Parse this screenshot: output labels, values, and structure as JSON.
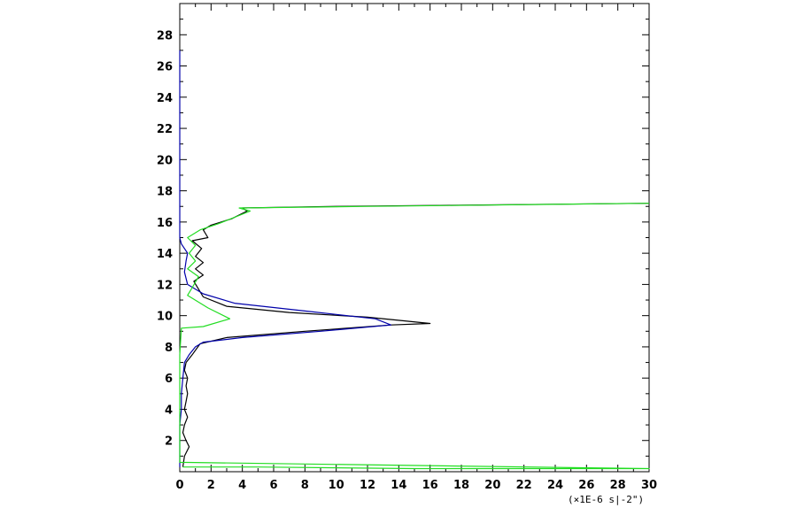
{
  "chart_data": {
    "type": "line",
    "title": "",
    "xlabel": "",
    "ylabel": "",
    "x_unit_note": "(×1E-6 s|-2\")",
    "xlim": [
      0,
      30
    ],
    "ylim": [
      0,
      30
    ],
    "x_ticks": [
      0,
      2,
      4,
      6,
      8,
      10,
      12,
      14,
      16,
      18,
      20,
      22,
      24,
      26,
      28,
      30
    ],
    "y_ticks": [
      2,
      4,
      6,
      8,
      10,
      12,
      14,
      16,
      18,
      20,
      22,
      24,
      26,
      28
    ],
    "grid": false,
    "series": [
      {
        "color": "#000000",
        "points": [
          [
            0.2,
            0.3
          ],
          [
            0.3,
            1.0
          ],
          [
            0.6,
            1.6
          ],
          [
            0.4,
            2.0
          ],
          [
            0.2,
            2.5
          ],
          [
            0.3,
            3.0
          ],
          [
            0.5,
            3.5
          ],
          [
            0.3,
            4.0
          ],
          [
            0.4,
            4.5
          ],
          [
            0.5,
            5.0
          ],
          [
            0.4,
            5.5
          ],
          [
            0.5,
            6.0
          ],
          [
            0.3,
            6.5
          ],
          [
            0.4,
            7.0
          ],
          [
            0.8,
            7.5
          ],
          [
            1.3,
            8.2
          ],
          [
            3.0,
            8.6
          ],
          [
            8.0,
            9.0
          ],
          [
            13.5,
            9.4
          ],
          [
            16.0,
            9.5
          ],
          [
            12.0,
            9.9
          ],
          [
            7.0,
            10.2
          ],
          [
            3.0,
            10.6
          ],
          [
            1.5,
            11.2
          ],
          [
            1.2,
            11.7
          ],
          [
            0.9,
            12.2
          ],
          [
            1.5,
            12.6
          ],
          [
            1.0,
            13.0
          ],
          [
            1.5,
            13.4
          ],
          [
            1.0,
            13.8
          ],
          [
            1.4,
            14.3
          ],
          [
            0.8,
            14.8
          ],
          [
            1.8,
            15.0
          ],
          [
            1.5,
            15.5
          ],
          [
            2.0,
            15.8
          ],
          [
            3.3,
            16.2
          ],
          [
            4.3,
            16.7
          ],
          [
            4.0,
            16.9
          ],
          [
            10.0,
            17.0
          ],
          [
            20.0,
            17.1
          ],
          [
            30.0,
            17.2
          ]
        ]
      },
      {
        "color": "#0000aa",
        "points": [
          [
            0.0,
            27.0
          ],
          [
            0.0,
            24.0
          ],
          [
            0.0,
            21.0
          ],
          [
            0.0,
            18.0
          ],
          [
            0.0,
            17.5
          ],
          [
            0.0,
            16.0
          ],
          [
            0.0,
            15.0
          ],
          [
            0.1,
            14.6
          ],
          [
            0.5,
            14.0
          ],
          [
            0.4,
            13.5
          ],
          [
            0.3,
            12.8
          ],
          [
            0.5,
            12.0
          ],
          [
            1.5,
            11.4
          ],
          [
            3.5,
            10.8
          ],
          [
            8.0,
            10.3
          ],
          [
            12.5,
            9.8
          ],
          [
            13.5,
            9.4
          ],
          [
            9.0,
            9.0
          ],
          [
            4.0,
            8.6
          ],
          [
            1.5,
            8.3
          ],
          [
            1.0,
            8.0
          ],
          [
            0.6,
            7.5
          ],
          [
            0.3,
            7.0
          ],
          [
            0.2,
            6.0
          ],
          [
            0.1,
            5.0
          ],
          [
            0.1,
            4.0
          ],
          [
            0.0,
            3.0
          ],
          [
            0.0,
            2.0
          ],
          [
            0.0,
            1.0
          ],
          [
            0.0,
            0.3
          ]
        ]
      },
      {
        "color": "#22dd22",
        "points": [
          [
            0.2,
            0.3
          ],
          [
            5.0,
            0.3
          ],
          [
            15.0,
            0.2
          ],
          [
            30.0,
            0.2
          ],
          [
            0.0,
            0.6
          ],
          [
            0.0,
            7.5
          ],
          [
            0.1,
            9.2
          ],
          [
            1.5,
            9.3
          ],
          [
            3.2,
            9.8
          ],
          [
            1.8,
            10.5
          ],
          [
            0.5,
            11.3
          ],
          [
            0.8,
            11.8
          ],
          [
            1.2,
            12.5
          ],
          [
            0.5,
            13.0
          ],
          [
            1.0,
            13.5
          ],
          [
            0.6,
            14.0
          ],
          [
            1.0,
            14.5
          ],
          [
            0.5,
            15.0
          ],
          [
            1.3,
            15.5
          ],
          [
            2.5,
            15.9
          ],
          [
            4.5,
            16.7
          ],
          [
            3.8,
            16.9
          ],
          [
            12.0,
            17.0
          ],
          [
            30.0,
            17.2
          ]
        ]
      }
    ]
  }
}
